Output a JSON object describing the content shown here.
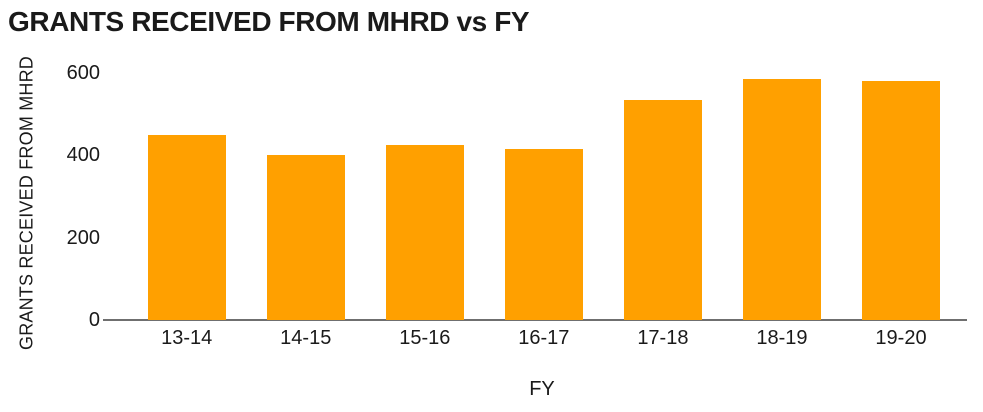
{
  "chart_data": {
    "type": "bar",
    "title": "GRANTS RECEIVED FROM MHRD vs FY",
    "xlabel": "FY",
    "ylabel": "GRANTS RECEIVED FROM MHRD",
    "categories": [
      "13-14",
      "14-15",
      "15-16",
      "16-17",
      "17-18",
      "18-19",
      "19-20"
    ],
    "values": [
      450,
      400,
      425,
      415,
      535,
      585,
      580
    ],
    "yticks": [
      0,
      200,
      400,
      600
    ],
    "ylim": [
      0,
      600
    ],
    "grid": false,
    "legend": "none",
    "colors": {
      "bar": "#FFA000",
      "axis_line": "#6F6F6F",
      "text": "#1A1A1A",
      "background": "#FFFFFF"
    }
  }
}
